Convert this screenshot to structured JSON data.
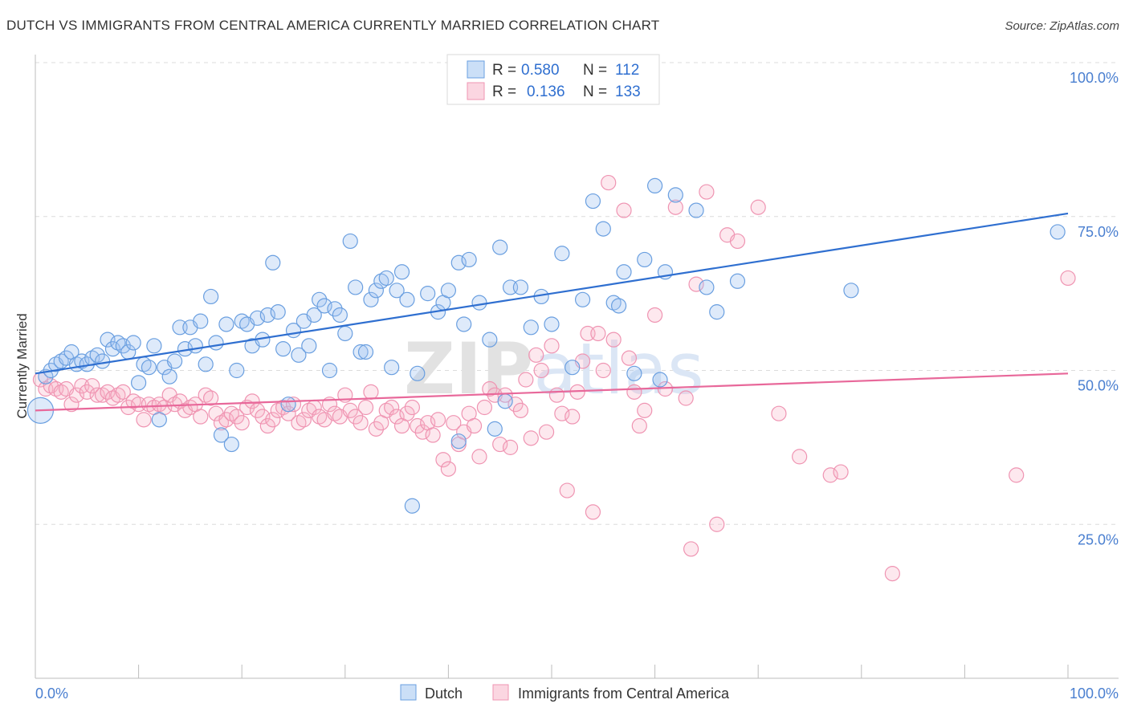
{
  "title": "DUTCH VS IMMIGRANTS FROM CENTRAL AMERICA CURRENTLY MARRIED CORRELATION CHART",
  "source": "Source: ZipAtlas.com",
  "watermark": "ZIPatlas",
  "colors": {
    "dutch_fill": "rgba(160,196,240,0.35)",
    "dutch_stroke": "#6a9fe0",
    "dutch_line": "#2f6fd0",
    "ca_fill": "rgba(248,180,200,0.30)",
    "ca_stroke": "#ef94b2",
    "ca_line": "#e8689a",
    "grid": "#dcdcdc",
    "tick_label": "#4a7fd0"
  },
  "legend": {
    "rows": [
      {
        "r_label": "R =",
        "r_value": "0.580",
        "n_label": "N =",
        "n_value": "112"
      },
      {
        "r_label": "R =",
        "r_value": "0.136",
        "n_label": "N =",
        "n_value": "133"
      }
    ]
  },
  "chart_data": {
    "type": "scatter",
    "title": "DUTCH VS IMMIGRANTS FROM CENTRAL AMERICA CURRENTLY MARRIED CORRELATION CHART",
    "xlabel": "",
    "ylabel": "Currently Married",
    "xlim": [
      0,
      100
    ],
    "ylim": [
      0,
      100
    ],
    "x_tick_labels": [
      "0.0%",
      "100.0%"
    ],
    "y_tick_labels": [
      "100.0%",
      "75.0%",
      "50.0%",
      "25.0%"
    ],
    "y_tick_values": [
      100,
      75,
      50,
      25
    ],
    "series": [
      {
        "name": "Dutch",
        "r": 0.58,
        "n": 112,
        "trend": {
          "x": [
            0,
            100
          ],
          "y": [
            49.5,
            75.5
          ]
        },
        "points": [
          [
            0.5,
            43.5
          ],
          [
            1,
            49
          ],
          [
            1.5,
            50
          ],
          [
            2,
            51
          ],
          [
            2.5,
            51.5
          ],
          [
            3,
            52
          ],
          [
            3.5,
            53
          ],
          [
            4,
            51
          ],
          [
            4.5,
            51.5
          ],
          [
            5,
            51
          ],
          [
            5.5,
            52
          ],
          [
            6,
            52.5
          ],
          [
            6.5,
            51.5
          ],
          [
            7,
            55
          ],
          [
            7.5,
            53.5
          ],
          [
            8,
            54.5
          ],
          [
            8.5,
            54
          ],
          [
            9,
            53
          ],
          [
            9.5,
            54.5
          ],
          [
            10,
            48
          ],
          [
            10.5,
            51
          ],
          [
            11,
            50.5
          ],
          [
            11.5,
            54
          ],
          [
            12,
            42
          ],
          [
            12.5,
            50.5
          ],
          [
            13,
            49
          ],
          [
            13.5,
            51.5
          ],
          [
            14,
            57
          ],
          [
            14.5,
            53.5
          ],
          [
            15,
            57
          ],
          [
            15.5,
            54
          ],
          [
            16,
            58
          ],
          [
            16.5,
            51
          ],
          [
            17,
            62
          ],
          [
            17.5,
            54.5
          ],
          [
            18,
            39.5
          ],
          [
            18.5,
            57.5
          ],
          [
            19,
            38
          ],
          [
            19.5,
            50
          ],
          [
            20,
            58
          ],
          [
            20.5,
            57.5
          ],
          [
            21,
            54
          ],
          [
            21.5,
            58.5
          ],
          [
            22,
            55
          ],
          [
            22.5,
            59
          ],
          [
            23,
            67.5
          ],
          [
            23.5,
            59.5
          ],
          [
            24,
            53.5
          ],
          [
            24.5,
            44.5
          ],
          [
            25,
            56.5
          ],
          [
            25.5,
            52.5
          ],
          [
            26,
            58
          ],
          [
            26.5,
            54
          ],
          [
            27,
            59
          ],
          [
            27.5,
            61.5
          ],
          [
            28,
            60.5
          ],
          [
            28.5,
            50
          ],
          [
            29,
            60
          ],
          [
            29.5,
            59
          ],
          [
            30,
            56
          ],
          [
            30.5,
            71
          ],
          [
            31,
            63.5
          ],
          [
            31.5,
            53
          ],
          [
            32,
            53
          ],
          [
            32.5,
            61.5
          ],
          [
            33,
            63
          ],
          [
            33.5,
            64.5
          ],
          [
            34,
            65
          ],
          [
            34.5,
            50.5
          ],
          [
            35,
            63
          ],
          [
            35.5,
            66
          ],
          [
            36,
            61.5
          ],
          [
            36.5,
            28
          ],
          [
            37,
            49.5
          ],
          [
            38,
            62.5
          ],
          [
            39,
            59.5
          ],
          [
            39.5,
            61
          ],
          [
            40,
            63
          ],
          [
            41,
            67.5
          ],
          [
            41.5,
            57.5
          ],
          [
            42,
            68
          ],
          [
            43,
            61
          ],
          [
            44,
            55
          ],
          [
            44.5,
            40.5
          ],
          [
            45,
            70
          ],
          [
            46,
            63.5
          ],
          [
            47,
            63.5
          ],
          [
            48,
            57
          ],
          [
            49,
            62
          ],
          [
            50,
            57.5
          ],
          [
            51,
            69
          ],
          [
            52,
            50.5
          ],
          [
            53,
            61.5
          ],
          [
            54,
            77.5
          ],
          [
            55,
            73
          ],
          [
            56,
            61
          ],
          [
            57,
            66
          ],
          [
            58,
            49.5
          ],
          [
            59,
            68
          ],
          [
            60,
            80
          ],
          [
            61,
            66
          ],
          [
            62,
            78.5
          ],
          [
            64,
            76
          ],
          [
            65,
            63.5
          ],
          [
            66,
            59.5
          ],
          [
            68,
            64.5
          ],
          [
            79,
            63
          ],
          [
            99,
            72.5
          ],
          [
            60.5,
            48.5
          ],
          [
            56.5,
            60.5
          ],
          [
            41,
            38.5
          ],
          [
            45.5,
            45
          ]
        ]
      },
      {
        "name": "Immigrants from Central America",
        "r": 0.136,
        "n": 133,
        "trend": {
          "x": [
            0,
            100
          ],
          "y": [
            43.5,
            49.5
          ]
        },
        "points": [
          [
            0.5,
            48.5
          ],
          [
            1,
            47
          ],
          [
            1.5,
            47.5
          ],
          [
            2,
            47
          ],
          [
            2.5,
            46.5
          ],
          [
            3,
            47
          ],
          [
            3.5,
            44.5
          ],
          [
            4,
            46
          ],
          [
            4.5,
            47.5
          ],
          [
            5,
            46.5
          ],
          [
            5.5,
            47.5
          ],
          [
            6,
            46
          ],
          [
            6.5,
            46
          ],
          [
            7,
            46.5
          ],
          [
            7.5,
            45.5
          ],
          [
            8,
            46
          ],
          [
            8.5,
            46.5
          ],
          [
            9,
            44
          ],
          [
            9.5,
            45
          ],
          [
            10,
            44.5
          ],
          [
            10.5,
            42
          ],
          [
            11,
            44.5
          ],
          [
            11.5,
            44
          ],
          [
            12,
            44.5
          ],
          [
            12.5,
            44
          ],
          [
            13,
            46
          ],
          [
            13.5,
            44.5
          ],
          [
            14,
            45
          ],
          [
            14.5,
            43.5
          ],
          [
            15,
            44
          ],
          [
            15.5,
            44.5
          ],
          [
            16,
            42.5
          ],
          [
            16.5,
            46
          ],
          [
            17,
            45.5
          ],
          [
            17.5,
            43
          ],
          [
            18,
            41.5
          ],
          [
            18.5,
            42
          ],
          [
            19,
            43
          ],
          [
            19.5,
            42.5
          ],
          [
            20,
            41.5
          ],
          [
            20.5,
            44
          ],
          [
            21,
            45
          ],
          [
            21.5,
            43.5
          ],
          [
            22,
            42.5
          ],
          [
            22.5,
            41
          ],
          [
            23,
            42
          ],
          [
            23.5,
            43.5
          ],
          [
            24,
            44
          ],
          [
            24.5,
            43
          ],
          [
            25,
            44.5
          ],
          [
            25.5,
            41.5
          ],
          [
            26,
            42
          ],
          [
            26.5,
            43.5
          ],
          [
            27,
            44
          ],
          [
            27.5,
            42.5
          ],
          [
            28,
            42
          ],
          [
            28.5,
            44.5
          ],
          [
            29,
            43
          ],
          [
            29.5,
            42.5
          ],
          [
            30,
            46
          ],
          [
            30.5,
            43.5
          ],
          [
            31,
            42.5
          ],
          [
            31.5,
            41.5
          ],
          [
            32,
            44
          ],
          [
            32.5,
            46.5
          ],
          [
            33,
            40.5
          ],
          [
            33.5,
            41.5
          ],
          [
            34,
            43.5
          ],
          [
            34.5,
            44
          ],
          [
            35,
            42.5
          ],
          [
            35.5,
            41
          ],
          [
            36,
            43
          ],
          [
            36.5,
            44
          ],
          [
            37,
            41
          ],
          [
            37.5,
            40
          ],
          [
            38,
            41.5
          ],
          [
            38.5,
            39.5
          ],
          [
            39,
            42
          ],
          [
            39.5,
            35.5
          ],
          [
            40,
            34
          ],
          [
            40.5,
            41.5
          ],
          [
            41,
            38
          ],
          [
            41.5,
            40
          ],
          [
            42,
            43
          ],
          [
            42.5,
            41
          ],
          [
            43,
            36
          ],
          [
            43.5,
            44
          ],
          [
            44,
            47
          ],
          [
            44.5,
            46
          ],
          [
            45,
            38
          ],
          [
            45.5,
            46
          ],
          [
            46,
            37.5
          ],
          [
            46.5,
            44.5
          ],
          [
            47,
            43.5
          ],
          [
            47.5,
            48.5
          ],
          [
            48,
            39
          ],
          [
            48.5,
            52.5
          ],
          [
            49,
            50
          ],
          [
            49.5,
            40
          ],
          [
            50,
            54
          ],
          [
            50.5,
            46
          ],
          [
            51,
            43
          ],
          [
            51.5,
            30.5
          ],
          [
            52,
            42.5
          ],
          [
            52.5,
            46.5
          ],
          [
            53,
            51.5
          ],
          [
            53.5,
            56
          ],
          [
            54,
            27
          ],
          [
            54.5,
            56
          ],
          [
            55,
            50
          ],
          [
            55.5,
            80.5
          ],
          [
            56,
            55
          ],
          [
            57,
            76
          ],
          [
            57.5,
            52
          ],
          [
            58,
            46.5
          ],
          [
            58.5,
            41
          ],
          [
            59,
            43.5
          ],
          [
            60,
            59
          ],
          [
            61,
            47
          ],
          [
            62,
            76.5
          ],
          [
            63,
            45.5
          ],
          [
            63.5,
            21
          ],
          [
            64,
            64
          ],
          [
            65,
            79
          ],
          [
            66,
            25
          ],
          [
            67,
            72
          ],
          [
            68,
            71
          ],
          [
            70,
            76.5
          ],
          [
            72,
            43
          ],
          [
            74,
            36
          ],
          [
            77,
            33
          ],
          [
            78,
            33.5
          ],
          [
            83,
            17
          ],
          [
            95,
            33
          ],
          [
            100,
            65
          ]
        ]
      }
    ]
  },
  "bottom_legend": {
    "items": [
      {
        "label": "Dutch"
      },
      {
        "label": "Immigrants from Central America"
      }
    ]
  },
  "axis": {
    "y_label": "Currently Married",
    "x_left": "0.0%",
    "x_right": "100.0%"
  }
}
